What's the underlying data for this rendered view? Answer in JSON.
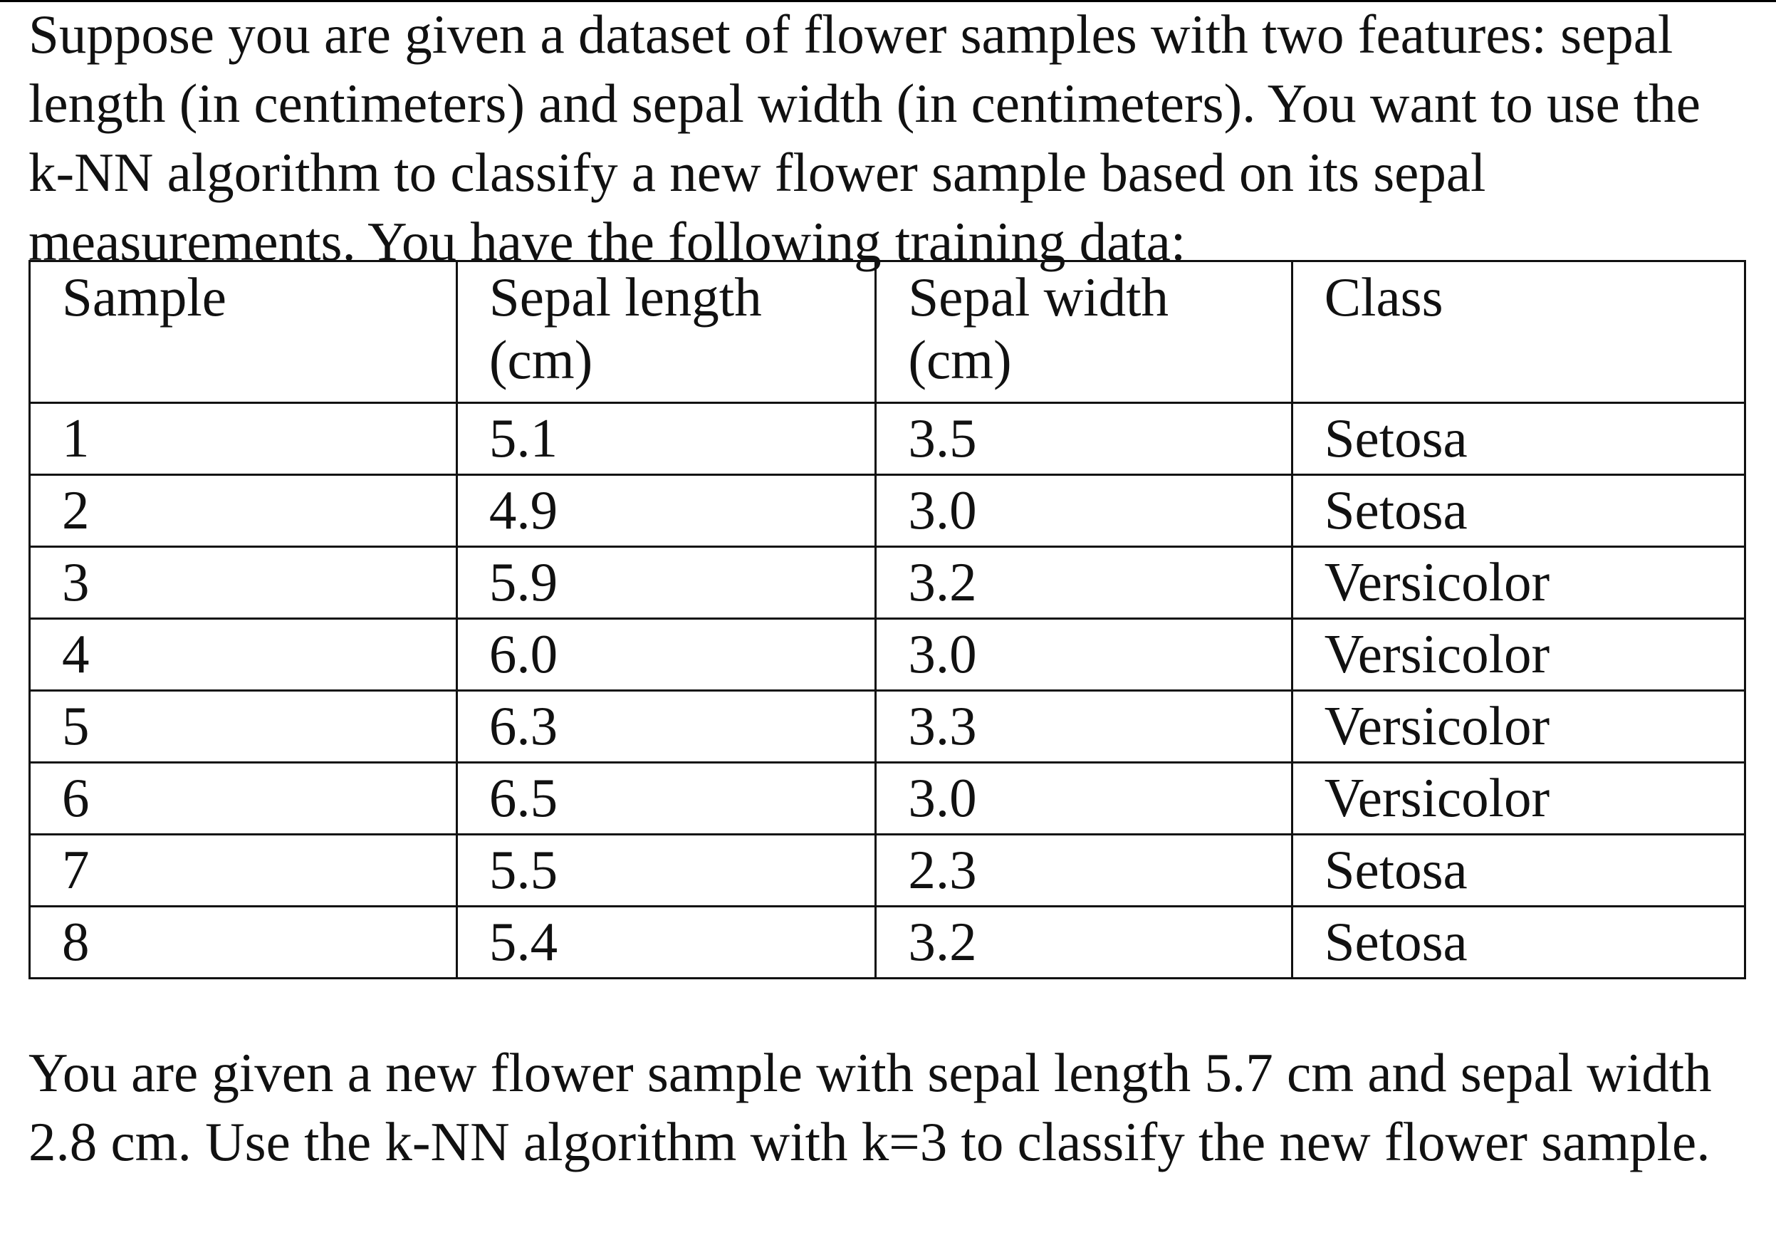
{
  "intro_text": "Suppose you are given a dataset of flower samples with two features: sepal length (in centimeters) and sepal width (in centimeters). You want to use the k-NN algorithm to classify a new flower sample based on its sepal measurements. You have the following training data:",
  "table": {
    "headers": {
      "sample": "Sample",
      "sepal_length": "Sepal length (cm)",
      "sepal_width": "Sepal width (cm)",
      "class": "Class"
    },
    "rows": [
      {
        "sample": "1",
        "sepal_length": "5.1",
        "sepal_width": "3.5",
        "class": "Setosa"
      },
      {
        "sample": "2",
        "sepal_length": "4.9",
        "sepal_width": "3.0",
        "class": "Setosa"
      },
      {
        "sample": "3",
        "sepal_length": "5.9",
        "sepal_width": "3.2",
        "class": "Versicolor"
      },
      {
        "sample": "4",
        "sepal_length": "6.0",
        "sepal_width": "3.0",
        "class": "Versicolor"
      },
      {
        "sample": "5",
        "sepal_length": "6.3",
        "sepal_width": "3.3",
        "class": "Versicolor"
      },
      {
        "sample": "6",
        "sepal_length": "6.5",
        "sepal_width": "3.0",
        "class": "Versicolor"
      },
      {
        "sample": "7",
        "sepal_length": "5.5",
        "sepal_width": "2.3",
        "class": "Setosa"
      },
      {
        "sample": "8",
        "sepal_length": "5.4",
        "sepal_width": "3.2",
        "class": "Setosa"
      }
    ]
  },
  "question_text": "You are given a new flower sample with sepal length 5.7 cm and sepal width 2.8 cm. Use the k-NN algorithm with k=3 to classify the new flower sample."
}
